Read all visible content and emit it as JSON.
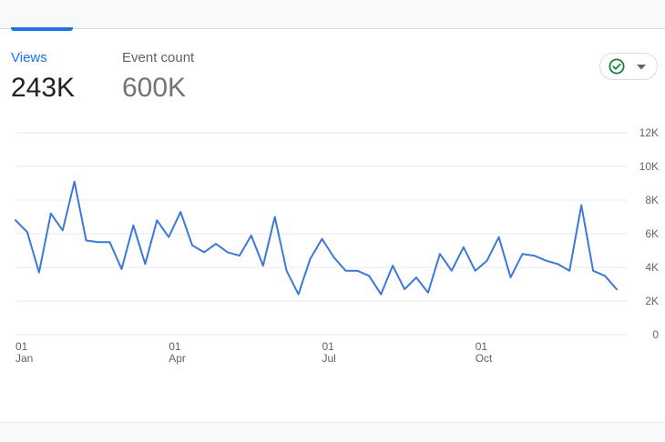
{
  "tabs": {
    "views": {
      "label": "Views",
      "value": "243K"
    },
    "event_count": {
      "label": "Event count",
      "value": "600K"
    }
  },
  "status_button": {
    "icon": "check-circle-icon",
    "dropdown_icon": "caret-down-icon",
    "color": "#188038"
  },
  "colors": {
    "accent": "#1a73e8",
    "line": "#3c78d8",
    "grid": "#e8eaed"
  },
  "chart_data": {
    "type": "line",
    "series": [
      {
        "values": [
          6800,
          6100,
          3700,
          7200,
          6200,
          9100,
          5600,
          5500,
          5500,
          3900,
          6500,
          4200,
          6800,
          5800,
          7300,
          5300,
          4900,
          5400,
          4900,
          4700,
          5900,
          4100,
          7000,
          3800,
          2400,
          4500,
          5700,
          4600,
          3800,
          3800,
          3500,
          2400,
          4100,
          2700,
          3400,
          2500,
          4800,
          3800,
          5200,
          3800,
          4400,
          5800,
          3400,
          4800,
          4700,
          4400,
          4200,
          3800,
          7700,
          3800,
          3500,
          2700
        ]
      }
    ],
    "x_ticks": [
      {
        "day": "01",
        "month": "Jan"
      },
      {
        "day": "01",
        "month": "Apr"
      },
      {
        "day": "01",
        "month": "Jul"
      },
      {
        "day": "01",
        "month": "Oct"
      }
    ],
    "y_ticks": [
      "0",
      "2K",
      "4K",
      "6K",
      "8K",
      "10K",
      "12K"
    ],
    "y_tick_values": [
      0,
      2000,
      4000,
      6000,
      8000,
      10000,
      12000
    ],
    "ylim": [
      0,
      12000
    ],
    "x_range": [
      0,
      51
    ],
    "x_tick_positions": [
      0,
      13,
      26,
      39
    ],
    "grid": true,
    "y_axis_side": "right"
  }
}
